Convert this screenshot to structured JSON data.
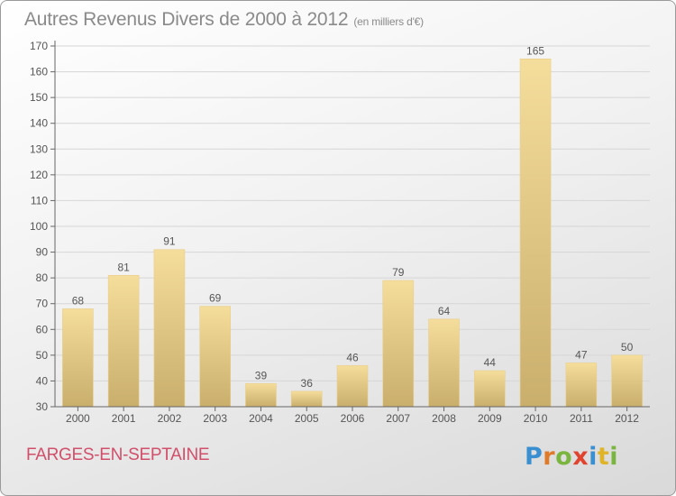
{
  "title": "Autres Revenus Divers de 2000 à 2012",
  "unit": "(en milliers d'€)",
  "commune": "FARGES-EN-SEPTAINE",
  "brand": {
    "letters": [
      {
        "char": "P",
        "color": "#3a8fd0"
      },
      {
        "char": "r",
        "color": "#e07a28"
      },
      {
        "char": "o",
        "color": "#7ab540"
      },
      {
        "char": "x",
        "color": "#e0442e"
      },
      {
        "char": "i",
        "color": "#3a8fd0"
      },
      {
        "char": "t",
        "color": "#e0b428"
      },
      {
        "char": "i",
        "color": "#7ab540"
      }
    ]
  },
  "colors": {
    "bar_light": "#f5dd9c",
    "bar_dark": "#c9ae6c",
    "axis": "#666666",
    "grid": "#d6d6d6",
    "text": "#555555"
  },
  "chart_data": {
    "type": "bar",
    "categories": [
      "2000",
      "2001",
      "2002",
      "2003",
      "2004",
      "2005",
      "2006",
      "2007",
      "2008",
      "2009",
      "2010",
      "2011",
      "2012"
    ],
    "values": [
      68,
      81,
      91,
      69,
      39,
      36,
      46,
      79,
      64,
      44,
      165,
      47,
      50
    ],
    "ylim": [
      30,
      170
    ],
    "yticks": [
      30,
      40,
      50,
      60,
      70,
      80,
      90,
      100,
      110,
      120,
      130,
      140,
      150,
      160,
      170
    ],
    "grid": true
  }
}
